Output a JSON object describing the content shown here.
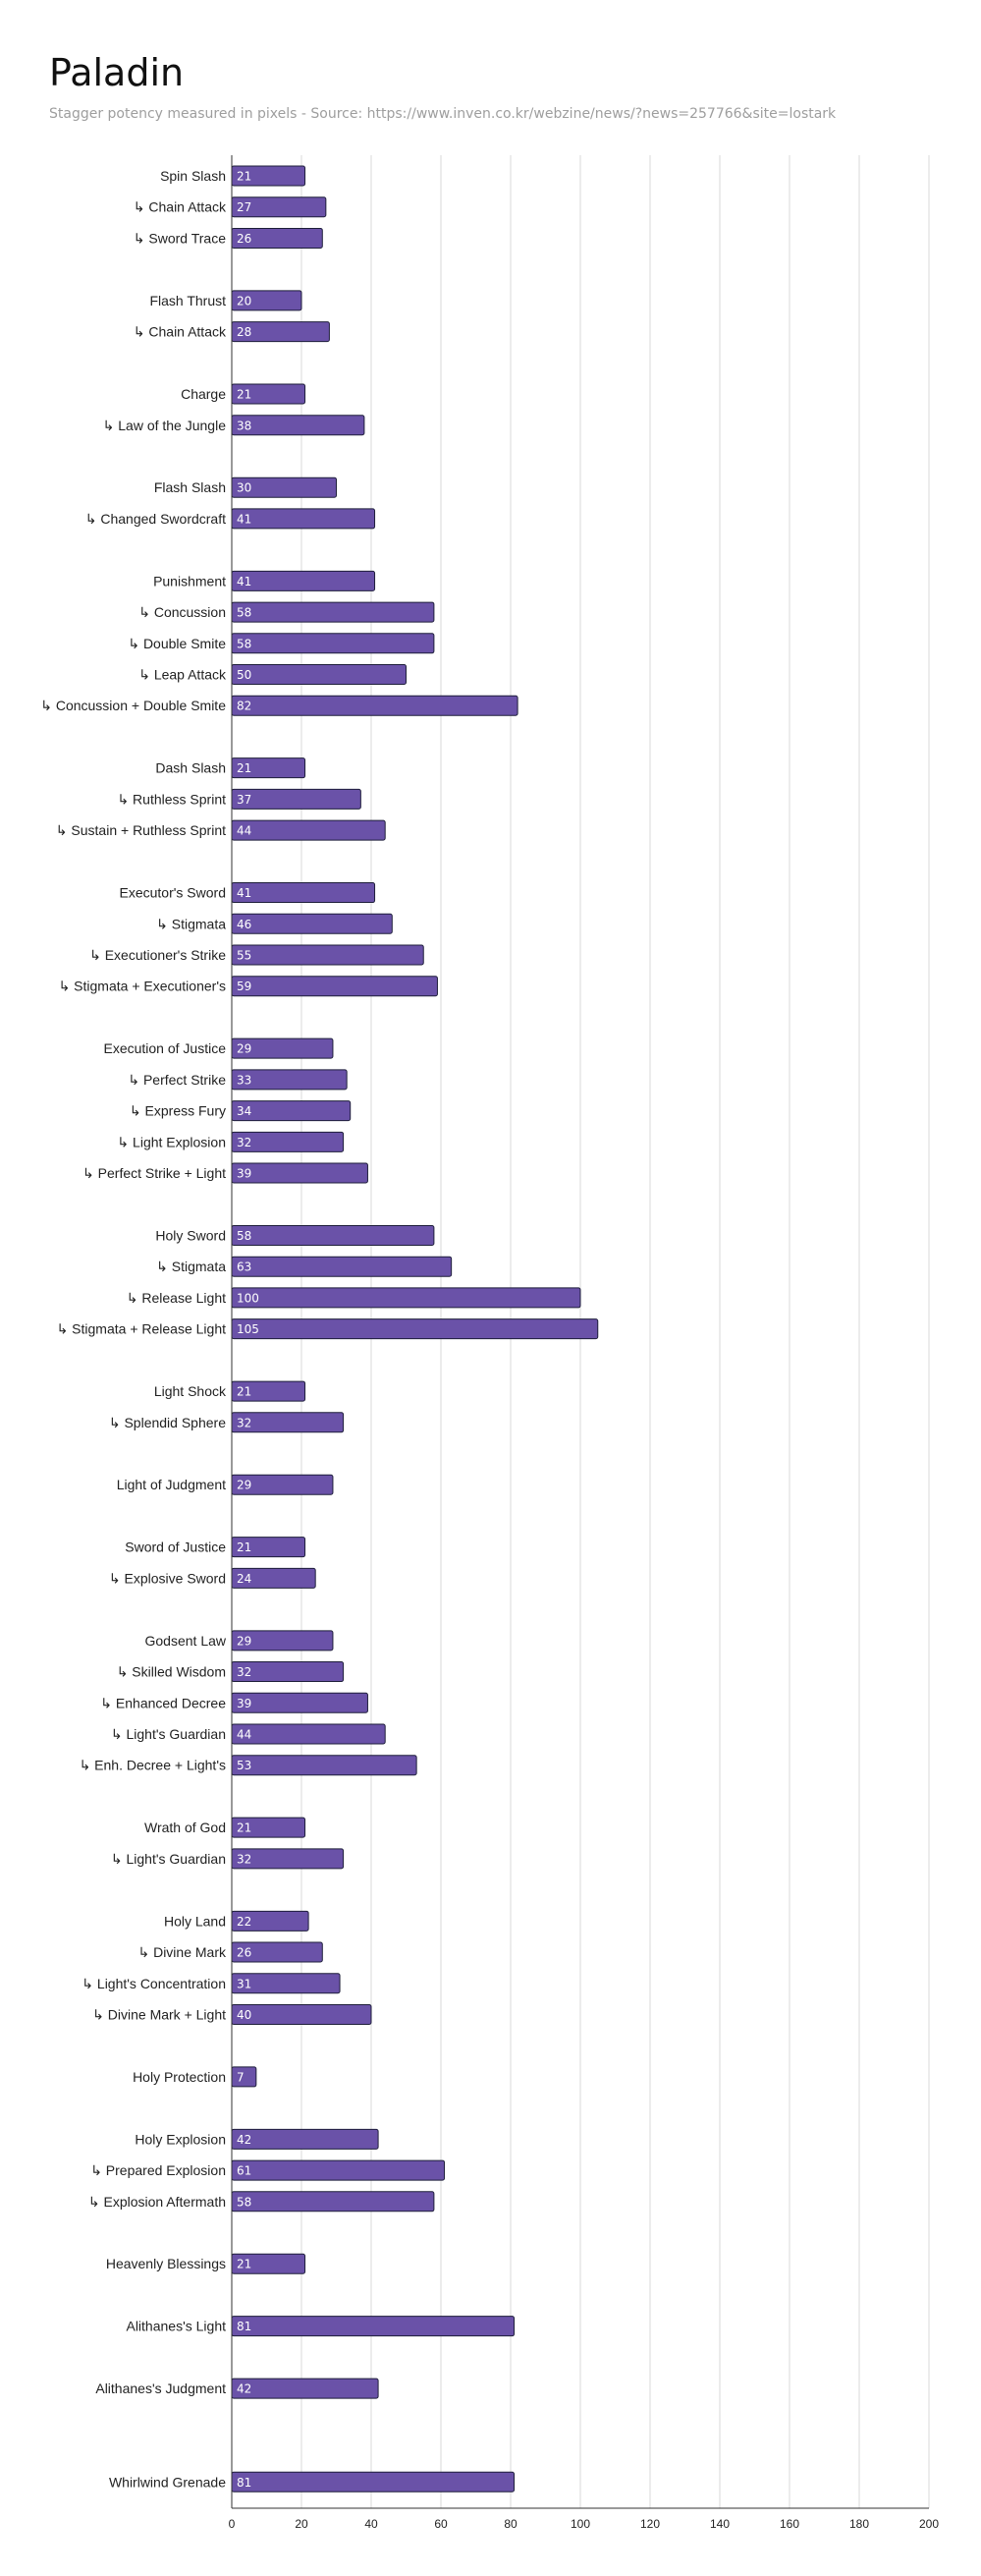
{
  "chart_data": {
    "type": "bar",
    "orientation": "horizontal",
    "title": "Paladin",
    "subtitle": "Stagger potency measured in pixels - Source: https://www.inven.co.kr/webzine/news/?news=257766&site=lostark",
    "xlabel": "",
    "ylabel": "",
    "xlim": [
      0,
      200
    ],
    "x_ticks": [
      "0",
      "20",
      "40",
      "60",
      "80",
      "100",
      "120",
      "140",
      "160",
      "180",
      "200"
    ],
    "grid": true,
    "bar_color": "#6a52a8",
    "categories": [
      "Spin Slash",
      "↳ Chain Attack",
      "↳ Sword Trace",
      "",
      "Flash Thrust",
      "↳ Chain Attack",
      "",
      "Charge",
      "↳ Law of the Jungle",
      "",
      "Flash Slash",
      "↳ Changed Swordcraft",
      "",
      "Punishment",
      "↳ Concussion",
      "↳ Double Smite",
      "↳ Leap Attack",
      "↳ Concussion + Double Smite",
      "",
      "Dash Slash",
      "↳ Ruthless Sprint",
      "↳ Sustain + Ruthless Sprint",
      "",
      "Executor's Sword",
      "↳ Stigmata",
      "↳ Executioner's Strike",
      "↳ Stigmata + Executioner's",
      "",
      "Execution of Justice",
      "↳ Perfect Strike",
      "↳ Express Fury",
      "↳ Light Explosion",
      "↳ Perfect Strike + Light",
      "",
      "Holy Sword",
      "↳ Stigmata",
      "↳ Release Light",
      "↳ Stigmata + Release Light",
      "",
      "Light Shock",
      "↳  Splendid Sphere",
      "",
      "Light of Judgment",
      "",
      "Sword of Justice",
      "↳ Explosive Sword",
      "",
      "Godsent Law",
      "↳ Skilled Wisdom",
      "↳ Enhanced Decree",
      "↳ Light's Guardian",
      "↳ Enh. Decree + Light's",
      "",
      "Wrath of God",
      "↳ Light's Guardian",
      "",
      "Holy Land",
      "↳ Divine Mark",
      "↳ Light's Concentration",
      "↳ Divine Mark + Light",
      "",
      "Holy Protection",
      "",
      "Holy Explosion",
      "↳ Prepared Explosion",
      "↳ Explosion Aftermath",
      "",
      "Heavenly Blessings",
      "",
      "Alithanes's Light",
      "",
      "Alithanes's Judgment",
      "",
      "",
      "Whirlwind Grenade"
    ],
    "values": [
      21,
      27,
      26,
      null,
      20,
      28,
      null,
      21,
      38,
      null,
      30,
      41,
      null,
      41,
      58,
      58,
      50,
      82,
      null,
      21,
      37,
      44,
      null,
      41,
      46,
      55,
      59,
      null,
      29,
      33,
      34,
      32,
      39,
      null,
      58,
      63,
      100,
      105,
      null,
      21,
      32,
      null,
      29,
      null,
      21,
      24,
      null,
      29,
      32,
      39,
      44,
      53,
      null,
      21,
      32,
      null,
      22,
      26,
      31,
      40,
      null,
      7,
      null,
      42,
      61,
      58,
      null,
      21,
      null,
      81,
      null,
      42,
      null,
      null,
      81
    ]
  }
}
